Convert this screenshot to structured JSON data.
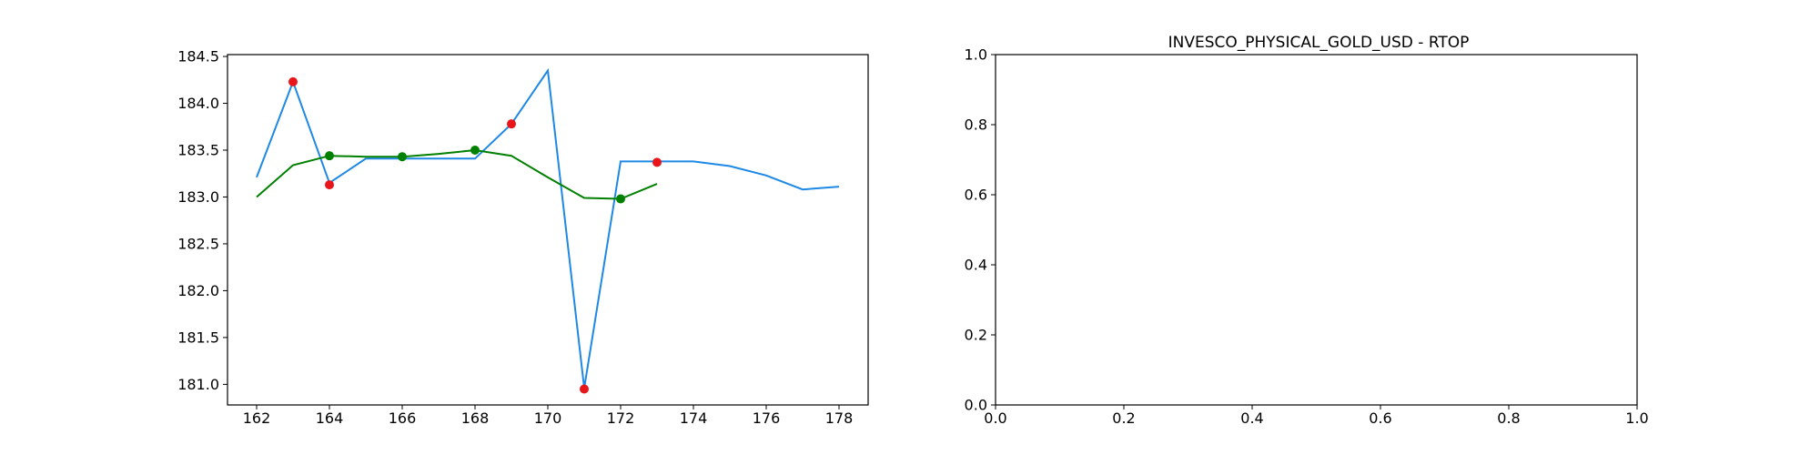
{
  "chart_data": [
    {
      "type": "line",
      "title": "",
      "xlabel": "",
      "ylabel": "",
      "xlim": [
        161.2,
        178.8
      ],
      "ylim": [
        180.78,
        184.52
      ],
      "grid": false,
      "x_ticks": [
        "162",
        "164",
        "166",
        "168",
        "170",
        "172",
        "174",
        "176",
        "178"
      ],
      "y_ticks": [
        "181.0",
        "181.5",
        "182.0",
        "182.5",
        "183.0",
        "183.5",
        "184.0",
        "184.5"
      ],
      "colors": {
        "price": "#1e88e5",
        "smooth": "#008000",
        "red_points": "#e8161b",
        "green_points": "#008000"
      },
      "series": [
        {
          "x": [
            162,
            163,
            164,
            165,
            166,
            167,
            168,
            169,
            170,
            171,
            172,
            173,
            174,
            175,
            176,
            177,
            178
          ],
          "y": [
            183.21,
            184.23,
            183.15,
            183.41,
            183.41,
            183.41,
            183.41,
            183.78,
            184.35,
            180.96,
            183.38,
            183.38,
            183.38,
            183.33,
            183.23,
            183.08,
            183.11
          ]
        },
        {
          "x": [
            162,
            163,
            164,
            165,
            166,
            167,
            168,
            169,
            170,
            171,
            172,
            173
          ],
          "y": [
            183.0,
            183.34,
            183.44,
            183.43,
            183.43,
            183.46,
            183.5,
            183.44,
            183.21,
            182.99,
            182.98,
            183.14
          ]
        }
      ],
      "markers": [
        {
          "x": [
            163,
            164,
            169,
            171,
            173
          ],
          "y": [
            184.23,
            183.13,
            183.78,
            180.95,
            183.37
          ],
          "color": "red"
        },
        {
          "x": [
            164,
            166,
            168,
            172
          ],
          "y": [
            183.44,
            183.43,
            183.5,
            182.98
          ],
          "color": "green"
        }
      ]
    },
    {
      "type": "line",
      "title": "INVESCO_PHYSICAL_GOLD_USD - RTOP",
      "xlabel": "",
      "ylabel": "",
      "xlim": [
        0,
        1
      ],
      "ylim": [
        0,
        1
      ],
      "grid": false,
      "x_ticks": [
        "0.0",
        "0.2",
        "0.4",
        "0.6",
        "0.8",
        "1.0"
      ],
      "y_ticks": [
        "0.0",
        "0.2",
        "0.4",
        "0.6",
        "0.8",
        "1.0"
      ],
      "series": []
    }
  ]
}
